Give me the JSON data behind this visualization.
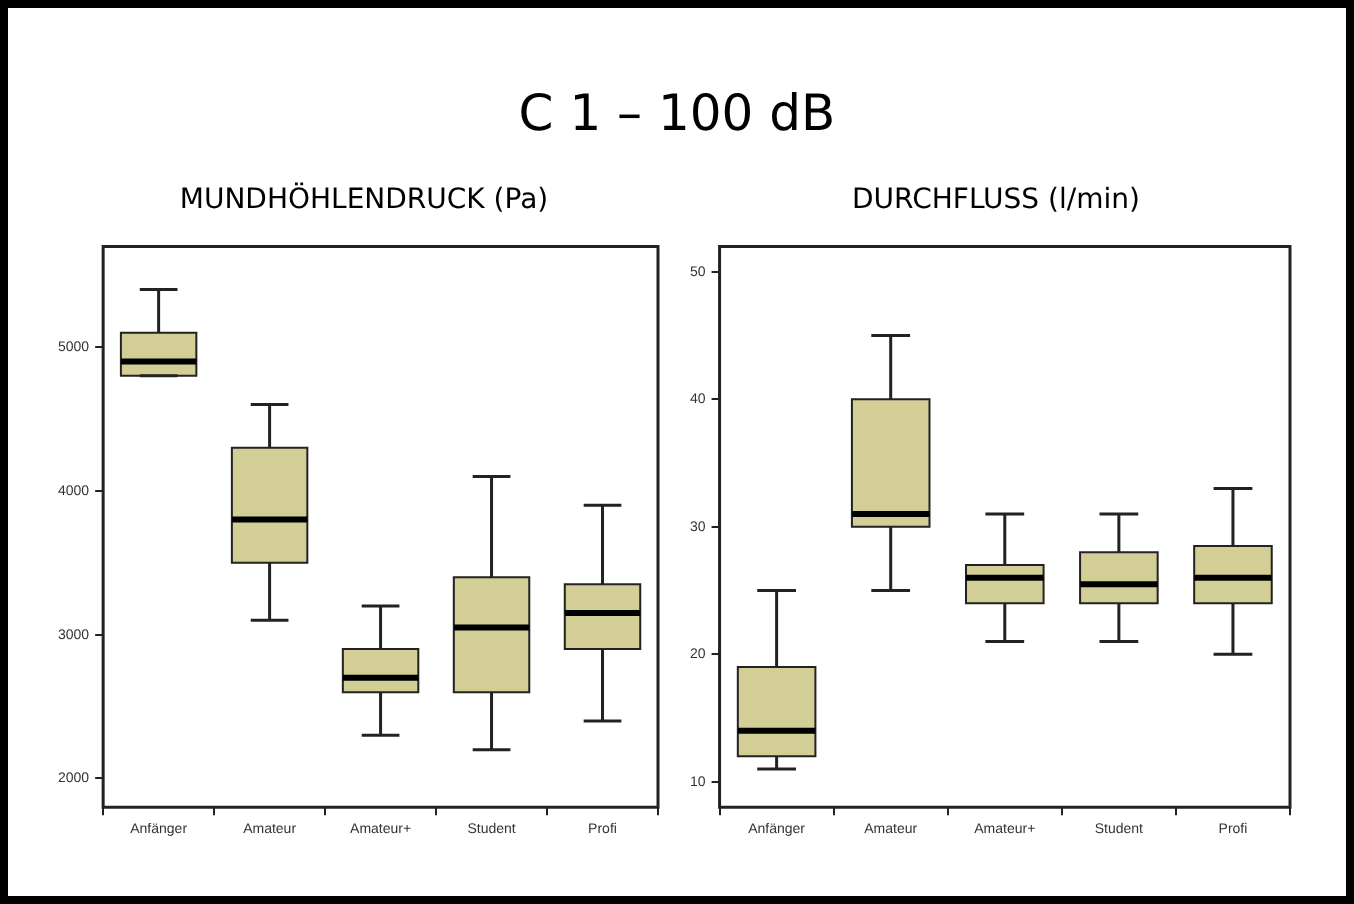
{
  "chart_data": [
    {
      "type": "box",
      "title": "C 1 – 100 dB",
      "subtitle": "MUNDHÖHLENDRUCK (Pa)",
      "categories": [
        "Anfänger",
        "Amateur",
        "Amateur+",
        "Student",
        "Profi"
      ],
      "ylim": [
        1800,
        5700
      ],
      "yticks": [
        2000,
        3000,
        4000,
        5000
      ],
      "grid": false,
      "series": [
        {
          "color": "#d3cd96",
          "boxes": [
            {
              "low": 4800,
              "q1": 4800,
              "median": 4900,
              "q3": 5100,
              "high": 5400
            },
            {
              "low": 3100,
              "q1": 3500,
              "median": 3800,
              "q3": 4300,
              "high": 4600
            },
            {
              "low": 2300,
              "q1": 2600,
              "median": 2700,
              "q3": 2900,
              "high": 3200
            },
            {
              "low": 2200,
              "q1": 2600,
              "median": 3050,
              "q3": 3400,
              "high": 4100
            },
            {
              "low": 2400,
              "q1": 2900,
              "median": 3150,
              "q3": 3350,
              "high": 3900
            }
          ]
        }
      ]
    },
    {
      "type": "box",
      "subtitle": "DURCHFLUSS (l/min)",
      "categories": [
        "Anfänger",
        "Amateur",
        "Amateur+",
        "Student",
        "Profi"
      ],
      "ylim": [
        8,
        52
      ],
      "yticks": [
        10,
        20,
        30,
        40,
        50
      ],
      "grid": false,
      "series": [
        {
          "color": "#d3cd96",
          "boxes": [
            {
              "low": 11,
              "q1": 12,
              "median": 14,
              "q3": 19,
              "high": 25
            },
            {
              "low": 25,
              "q1": 30,
              "median": 31,
              "q3": 40,
              "high": 45
            },
            {
              "low": 21,
              "q1": 24,
              "median": 26,
              "q3": 27,
              "high": 31
            },
            {
              "low": 21,
              "q1": 24,
              "median": 25.5,
              "q3": 28,
              "high": 31
            },
            {
              "low": 20,
              "q1": 24,
              "median": 26,
              "q3": 28.5,
              "high": 33
            }
          ]
        }
      ]
    }
  ]
}
